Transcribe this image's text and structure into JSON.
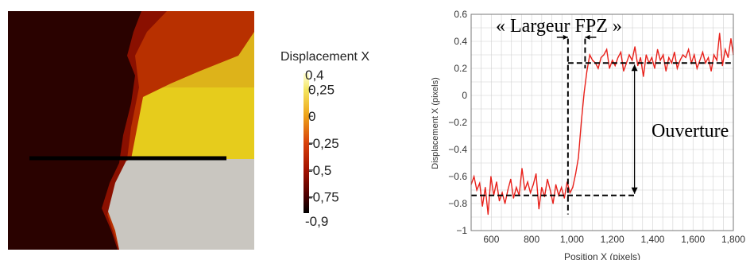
{
  "colors": {
    "line": "#e8201a",
    "dashed": "#000000",
    "grid": "#d0d0d0",
    "field_dark": "#250000",
    "field_red": "#c42000",
    "field_yellow": "#e8d416",
    "field_grey": "#c9c6c0"
  },
  "colorbar": {
    "title": "Displacement X",
    "max_label": "0,4",
    "min_label": "-0,9",
    "tick_labels": [
      "0,25",
      "0",
      "-0,25",
      "-0,5",
      "-0,75"
    ],
    "tick_values": [
      0.25,
      0,
      -0.25,
      -0.5,
      -0.75
    ],
    "range": [
      -0.9,
      0.4
    ]
  },
  "annotations": {
    "width": "« Largeur FPZ »",
    "opening": "Ouverture"
  },
  "chart_data": {
    "type": "line",
    "title": "",
    "xlabel": "Position X (pixels)",
    "ylabel": "Displacement X (pixels)",
    "xlim": [
      500,
      1800
    ],
    "ylim": [
      -1,
      0.6
    ],
    "grid": true,
    "x_ticks": [
      600,
      800,
      1000,
      1200,
      1400,
      1600,
      1800
    ],
    "x_tick_labels": [
      "600",
      "800",
      "1,000",
      "1,200",
      "1,400",
      "1,600",
      "1,800"
    ],
    "y_ticks": [
      -1,
      -0.8,
      -0.6,
      -0.4,
      -0.2,
      0,
      0.2,
      0.4,
      0.6
    ],
    "y_tick_labels": [
      "−1",
      "−0.8",
      "−0.6",
      "−0.4",
      "−0.2",
      "0",
      "0.2",
      "0.4",
      "0.6"
    ],
    "x": [
      500,
      514,
      528,
      542,
      556,
      570,
      584,
      598,
      612,
      626,
      640,
      654,
      668,
      682,
      696,
      710,
      724,
      738,
      752,
      766,
      780,
      794,
      808,
      822,
      836,
      850,
      864,
      878,
      892,
      906,
      920,
      934,
      948,
      962,
      976,
      990,
      1004,
      1018,
      1032,
      1046,
      1060,
      1074,
      1088,
      1102,
      1116,
      1130,
      1144,
      1158,
      1172,
      1186,
      1200,
      1214,
      1228,
      1242,
      1256,
      1270,
      1284,
      1298,
      1312,
      1326,
      1340,
      1354,
      1368,
      1382,
      1396,
      1410,
      1424,
      1438,
      1452,
      1466,
      1480,
      1494,
      1508,
      1522,
      1536,
      1550,
      1564,
      1578,
      1592,
      1606,
      1620,
      1634,
      1648,
      1662,
      1676,
      1690,
      1704,
      1718,
      1732,
      1746,
      1760,
      1774,
      1788,
      1800
    ],
    "y": [
      -0.66,
      -0.6,
      -0.7,
      -0.65,
      -0.82,
      -0.68,
      -0.88,
      -0.6,
      -0.74,
      -0.64,
      -0.78,
      -0.72,
      -0.8,
      -0.7,
      -0.62,
      -0.76,
      -0.68,
      -0.74,
      -0.54,
      -0.7,
      -0.64,
      -0.72,
      -0.66,
      -0.58,
      -0.84,
      -0.68,
      -0.75,
      -0.62,
      -0.7,
      -0.8,
      -0.66,
      -0.74,
      -0.68,
      -0.76,
      -0.64,
      -0.72,
      -0.68,
      -0.58,
      -0.46,
      -0.2,
      0.02,
      0.18,
      0.3,
      0.26,
      0.24,
      0.2,
      0.28,
      0.3,
      0.34,
      0.2,
      0.26,
      0.22,
      0.28,
      0.32,
      0.18,
      0.24,
      0.3,
      0.26,
      0.36,
      0.22,
      0.28,
      0.14,
      0.3,
      0.24,
      0.28,
      0.2,
      0.34,
      0.26,
      0.3,
      0.18,
      0.28,
      0.24,
      0.32,
      0.2,
      0.26,
      0.3,
      0.28,
      0.34,
      0.24,
      0.3,
      0.2,
      0.26,
      0.32,
      0.24,
      0.28,
      0.18,
      0.3,
      0.26,
      0.46,
      0.22,
      0.34,
      0.28,
      0.42,
      0.3
    ]
  }
}
